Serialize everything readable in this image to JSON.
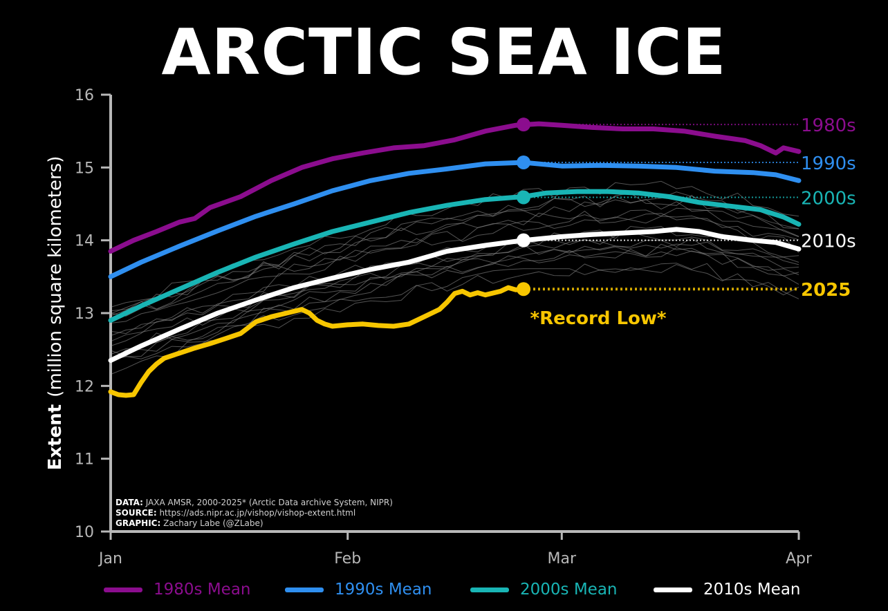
{
  "chart_data": {
    "type": "line",
    "title": "ARCTIC SEA ICE",
    "ylabel_bold": "Extent",
    "ylabel": "(million square kilometers)",
    "xlabel": "",
    "ylim": [
      10,
      16
    ],
    "xlim": [
      1,
      91
    ],
    "xticks": [
      {
        "x": 1,
        "label": "Jan"
      },
      {
        "x": 32,
        "label": "Feb"
      },
      {
        "x": 60,
        "label": "Mar"
      },
      {
        "x": 91,
        "label": "Apr"
      }
    ],
    "yticks": [
      10,
      11,
      12,
      13,
      14,
      15,
      16
    ],
    "series": [
      {
        "name": "1980s",
        "legend": "1980s Mean",
        "color": "#8b0d8e",
        "end_label": "1980s",
        "points": [
          [
            1,
            13.85
          ],
          [
            4,
            14.0
          ],
          [
            7,
            14.12
          ],
          [
            10,
            14.25
          ],
          [
            12,
            14.3
          ],
          [
            14,
            14.45
          ],
          [
            18,
            14.6
          ],
          [
            22,
            14.82
          ],
          [
            26,
            15.0
          ],
          [
            30,
            15.12
          ],
          [
            34,
            15.2
          ],
          [
            38,
            15.27
          ],
          [
            42,
            15.3
          ],
          [
            46,
            15.38
          ],
          [
            50,
            15.5
          ],
          [
            54,
            15.58
          ],
          [
            57,
            15.6
          ],
          [
            60,
            15.58
          ],
          [
            64,
            15.55
          ],
          [
            68,
            15.53
          ],
          [
            72,
            15.53
          ],
          [
            76,
            15.5
          ],
          [
            80,
            15.43
          ],
          [
            84,
            15.37
          ],
          [
            86,
            15.3
          ],
          [
            88,
            15.2
          ],
          [
            89,
            15.27
          ],
          [
            91,
            15.22
          ]
        ],
        "marker": [
          55,
          15.59
        ],
        "ref": 15.59
      },
      {
        "name": "1990s",
        "legend": "1990s Mean",
        "color": "#2f8ff0",
        "end_label": "1990s",
        "points": [
          [
            1,
            13.5
          ],
          [
            5,
            13.7
          ],
          [
            10,
            13.92
          ],
          [
            15,
            14.13
          ],
          [
            20,
            14.33
          ],
          [
            25,
            14.5
          ],
          [
            30,
            14.68
          ],
          [
            35,
            14.82
          ],
          [
            40,
            14.92
          ],
          [
            45,
            14.98
          ],
          [
            50,
            15.05
          ],
          [
            55,
            15.07
          ],
          [
            60,
            15.02
          ],
          [
            65,
            15.03
          ],
          [
            70,
            15.02
          ],
          [
            75,
            15.0
          ],
          [
            80,
            14.95
          ],
          [
            85,
            14.93
          ],
          [
            88,
            14.9
          ],
          [
            91,
            14.82
          ]
        ],
        "marker": [
          55,
          15.07
        ],
        "ref": 15.07
      },
      {
        "name": "2000s",
        "legend": "2000s Mean",
        "color": "#19b5b5",
        "end_label": "2000s",
        "points": [
          [
            1,
            12.9
          ],
          [
            5,
            13.1
          ],
          [
            10,
            13.33
          ],
          [
            15,
            13.56
          ],
          [
            20,
            13.77
          ],
          [
            25,
            13.95
          ],
          [
            30,
            14.12
          ],
          [
            35,
            14.25
          ],
          [
            40,
            14.38
          ],
          [
            45,
            14.48
          ],
          [
            50,
            14.56
          ],
          [
            55,
            14.6
          ],
          [
            58,
            14.65
          ],
          [
            62,
            14.67
          ],
          [
            66,
            14.67
          ],
          [
            70,
            14.65
          ],
          [
            74,
            14.6
          ],
          [
            78,
            14.52
          ],
          [
            82,
            14.47
          ],
          [
            86,
            14.42
          ],
          [
            89,
            14.32
          ],
          [
            91,
            14.22
          ]
        ],
        "marker": [
          55,
          14.59
        ],
        "ref": 14.59
      },
      {
        "name": "2010s",
        "legend": "2010s Mean",
        "color": "#ffffff",
        "end_label": "2010s",
        "points": [
          [
            1,
            12.35
          ],
          [
            5,
            12.55
          ],
          [
            10,
            12.78
          ],
          [
            15,
            13.0
          ],
          [
            20,
            13.18
          ],
          [
            25,
            13.35
          ],
          [
            30,
            13.48
          ],
          [
            35,
            13.6
          ],
          [
            40,
            13.7
          ],
          [
            45,
            13.85
          ],
          [
            50,
            13.93
          ],
          [
            55,
            14.0
          ],
          [
            60,
            14.05
          ],
          [
            64,
            14.08
          ],
          [
            68,
            14.1
          ],
          [
            72,
            14.12
          ],
          [
            75,
            14.15
          ],
          [
            78,
            14.12
          ],
          [
            81,
            14.05
          ],
          [
            85,
            14.0
          ],
          [
            88,
            13.97
          ],
          [
            91,
            13.88
          ]
        ],
        "marker": [
          55,
          14.0
        ],
        "ref": 14.0
      },
      {
        "name": "2025",
        "color": "#f7c600",
        "end_label": "2025",
        "points": [
          [
            1,
            11.92
          ],
          [
            2,
            11.88
          ],
          [
            3,
            11.87
          ],
          [
            4,
            11.88
          ],
          [
            5,
            12.05
          ],
          [
            6,
            12.2
          ],
          [
            7,
            12.3
          ],
          [
            8,
            12.38
          ],
          [
            10,
            12.45
          ],
          [
            12,
            12.52
          ],
          [
            14,
            12.58
          ],
          [
            16,
            12.65
          ],
          [
            18,
            12.72
          ],
          [
            20,
            12.88
          ],
          [
            22,
            12.95
          ],
          [
            24,
            13.0
          ],
          [
            26,
            13.05
          ],
          [
            27,
            13.0
          ],
          [
            28,
            12.9
          ],
          [
            29,
            12.85
          ],
          [
            30,
            12.82
          ],
          [
            32,
            12.84
          ],
          [
            34,
            12.85
          ],
          [
            36,
            12.83
          ],
          [
            38,
            12.82
          ],
          [
            40,
            12.85
          ],
          [
            42,
            12.95
          ],
          [
            44,
            13.05
          ],
          [
            45,
            13.15
          ],
          [
            46,
            13.27
          ],
          [
            47,
            13.3
          ],
          [
            48,
            13.25
          ],
          [
            49,
            13.28
          ],
          [
            50,
            13.25
          ],
          [
            52,
            13.3
          ],
          [
            53,
            13.35
          ],
          [
            54,
            13.32
          ],
          [
            55,
            13.33
          ]
        ],
        "marker": [
          55,
          13.33
        ],
        "ref": 13.33
      }
    ],
    "annotation": "*Record Low*",
    "credits": [
      {
        "label": "DATA:",
        "text": " JAXA AMSR, 2000-2025* (Arctic Data archive System, NIPR)"
      },
      {
        "label": "SOURCE:",
        "text": " https://ads.nipr.ac.jp/vishop/vishop-extent.html"
      },
      {
        "label": "GRAPHIC:",
        "text": " Zachary Labe (@ZLabe)"
      }
    ]
  }
}
